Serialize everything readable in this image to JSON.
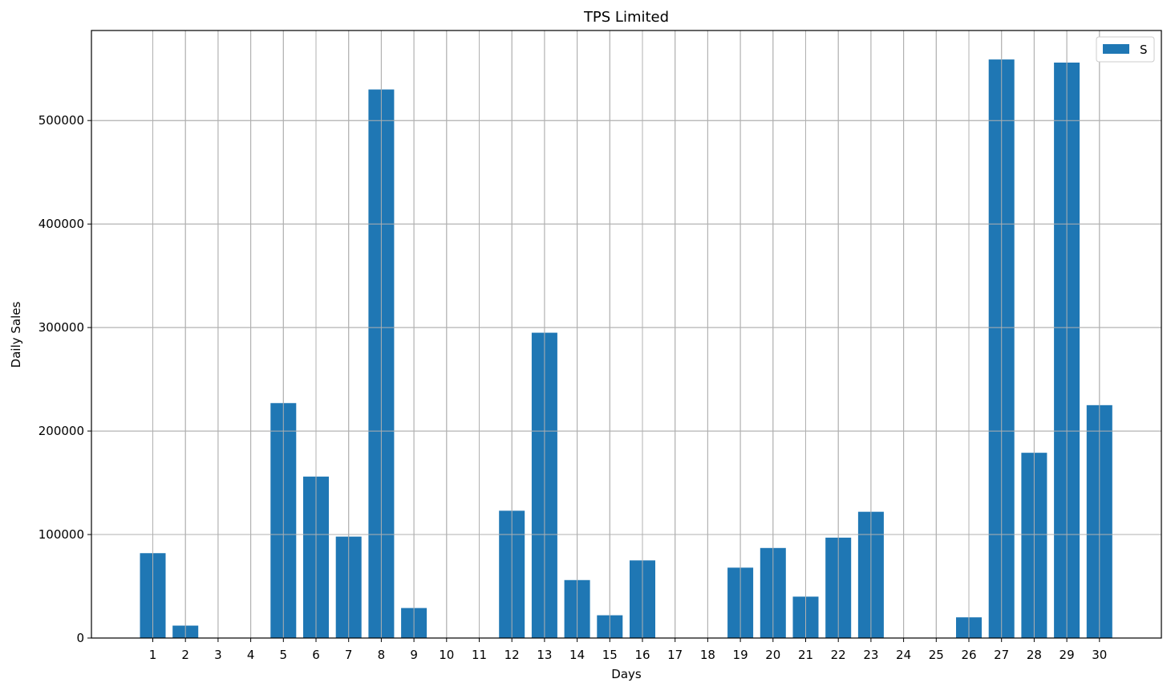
{
  "chart_data": {
    "type": "bar",
    "title": "TPS Limited",
    "xlabel": "Days",
    "ylabel": "Daily Sales",
    "categories": [
      "1",
      "2",
      "3",
      "4",
      "5",
      "6",
      "7",
      "8",
      "9",
      "10",
      "11",
      "12",
      "13",
      "14",
      "15",
      "16",
      "17",
      "18",
      "19",
      "20",
      "21",
      "22",
      "23",
      "24",
      "25",
      "26",
      "27",
      "28",
      "29",
      "30"
    ],
    "series": [
      {
        "name": "S",
        "values": [
          82000,
          12000,
          0,
          0,
          227000,
          156000,
          98000,
          530000,
          29000,
          0,
          0,
          123000,
          295000,
          56000,
          22000,
          75000,
          0,
          0,
          68000,
          87000,
          40000,
          97000,
          122000,
          0,
          0,
          20000,
          559000,
          179000,
          556000,
          225000
        ]
      }
    ],
    "yticks": [
      0,
      100000,
      200000,
      300000,
      400000,
      500000
    ],
    "ytick_labels": [
      "0",
      "100000",
      "200000",
      "300000",
      "400000",
      "500000"
    ],
    "ylim": [
      0,
      587000
    ],
    "grid": true,
    "legend": "top-right",
    "colors": {
      "bar": "#1f77b4",
      "grid": "#b0b0b0",
      "axes": "#000000"
    }
  }
}
